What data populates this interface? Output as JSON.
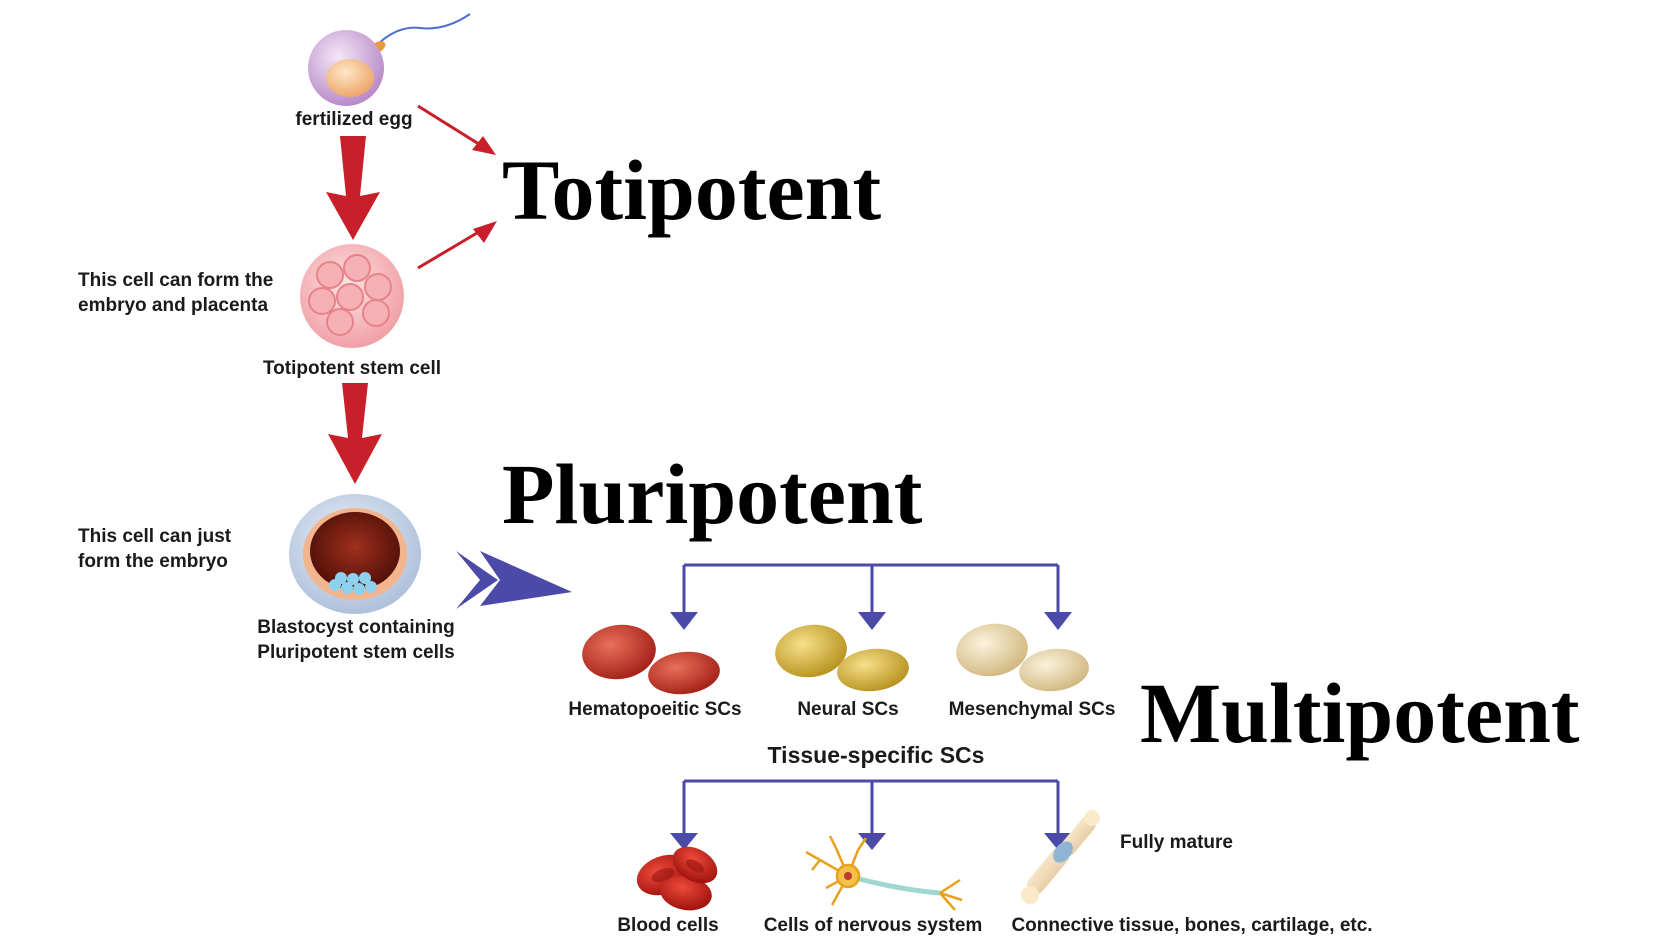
{
  "labels": {
    "fertilized_egg": "fertilized egg",
    "embryo_placenta_line1": "This cell can form the",
    "embryo_placenta_line2": "embryo and placenta",
    "totipotent_stem_cell": "Totipotent stem cell",
    "just_embryo_line1": "This cell can just",
    "just_embryo_line2": "form the embryo",
    "blastocyst_line1": "Blastocyst containing",
    "blastocyst_line2": "Pluripotent stem cells",
    "hematopoeitic": "Hematopoeitic SCs",
    "neural": "Neural SCs",
    "mesenchymal": "Mesenchymal SCs",
    "tissue_specific": "Tissue-specific SCs",
    "fully_mature": "Fully mature",
    "blood_cells": "Blood cells",
    "nervous_cells": "Cells of nervous system",
    "connective": "Connective tissue, bones, cartilage, etc."
  },
  "headings": {
    "totipotent": "Totipotent",
    "pluripotent": "Pluripotent",
    "multipotent": "Multipotent"
  },
  "colors": {
    "red_arrow": "#c8202a",
    "blue_arrow": "#4b4aa8",
    "hematopoeitic": "#c0392b",
    "neural": "#d4b23a",
    "mesenchymal": "#e6d3a3"
  }
}
